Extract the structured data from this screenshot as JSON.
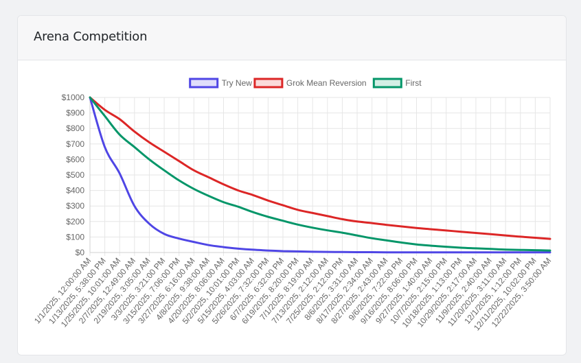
{
  "card": {
    "title": "Arena Competition"
  },
  "chart_data": {
    "type": "line",
    "title": "",
    "xlabel": "",
    "ylabel": "",
    "ylim": [
      0,
      1000
    ],
    "grid": true,
    "legend_position": "top-center",
    "y_ticks": [
      "$0",
      "$100",
      "$200",
      "$300",
      "$400",
      "$500",
      "$600",
      "$700",
      "$800",
      "$900",
      "$1000"
    ],
    "categories": [
      "1/1/2025, 12:00:00 AM",
      "1/13/2025, 5:38:00 PM",
      "1/25/2025, 10:01:00 AM",
      "2/7/2025, 12:49:00 AM",
      "2/19/2025, 3:05:00 AM",
      "3/3/2025, 3:21:00 PM",
      "3/15/2025, 7:06:00 PM",
      "3/27/2025, 6:16:00 AM",
      "4/8/2025, 9:38:00 AM",
      "4/20/2025, 8:06:00 AM",
      "5/2/2025, 10:01:00 PM",
      "5/15/2025, 4:03:00 AM",
      "5/26/2025, 7:32:00 PM",
      "6/7/2025, 6:32:00 PM",
      "6/19/2025, 8:20:00 PM",
      "7/1/2025, 8:19:00 AM",
      "7/13/2025, 2:12:00 AM",
      "7/25/2025, 2:12:00 PM",
      "8/6/2025, 3:31:00 AM",
      "8/17/2025, 2:34:00 AM",
      "8/27/2025, 2:43:00 AM",
      "9/6/2025, 7:22:00 PM",
      "9/16/2025, 8:06:00 PM",
      "9/27/2025, 1:40:00 AM",
      "10/7/2025, 2:15:00 PM",
      "10/18/2025, 1:13:00 PM",
      "10/29/2025, 2:17:00 AM",
      "11/9/2025, 2:40:00 AM",
      "11/20/2025, 3:11:00 AM",
      "12/1/2025, 1:12:00 PM",
      "12/11/2025, 10:02:00 PM",
      "12/22/2025, 3:50:00 AM"
    ],
    "series": [
      {
        "name": "Try New",
        "color": "#4f46e5",
        "values": [
          1000,
          680,
          510,
          300,
          185,
          120,
          90,
          68,
          48,
          35,
          25,
          18,
          13,
          9,
          7,
          5,
          4,
          3,
          2,
          2,
          1,
          1,
          1,
          1,
          1,
          1,
          1,
          1,
          1,
          1,
          1,
          1
        ]
      },
      {
        "name": "Grok Mean Reversion",
        "color": "#dc2626",
        "values": [
          1000,
          920,
          860,
          780,
          710,
          650,
          590,
          530,
          485,
          440,
          400,
          370,
          335,
          305,
          275,
          255,
          235,
          215,
          200,
          190,
          178,
          168,
          158,
          150,
          142,
          134,
          126,
          118,
          110,
          102,
          95,
          88
        ]
      },
      {
        "name": "First",
        "color": "#059669",
        "values": [
          1000,
          880,
          760,
          680,
          600,
          530,
          465,
          410,
          365,
          325,
          295,
          260,
          230,
          205,
          180,
          160,
          143,
          128,
          110,
          92,
          78,
          64,
          52,
          44,
          37,
          31,
          27,
          23,
          19,
          17,
          15,
          13
        ]
      }
    ]
  }
}
